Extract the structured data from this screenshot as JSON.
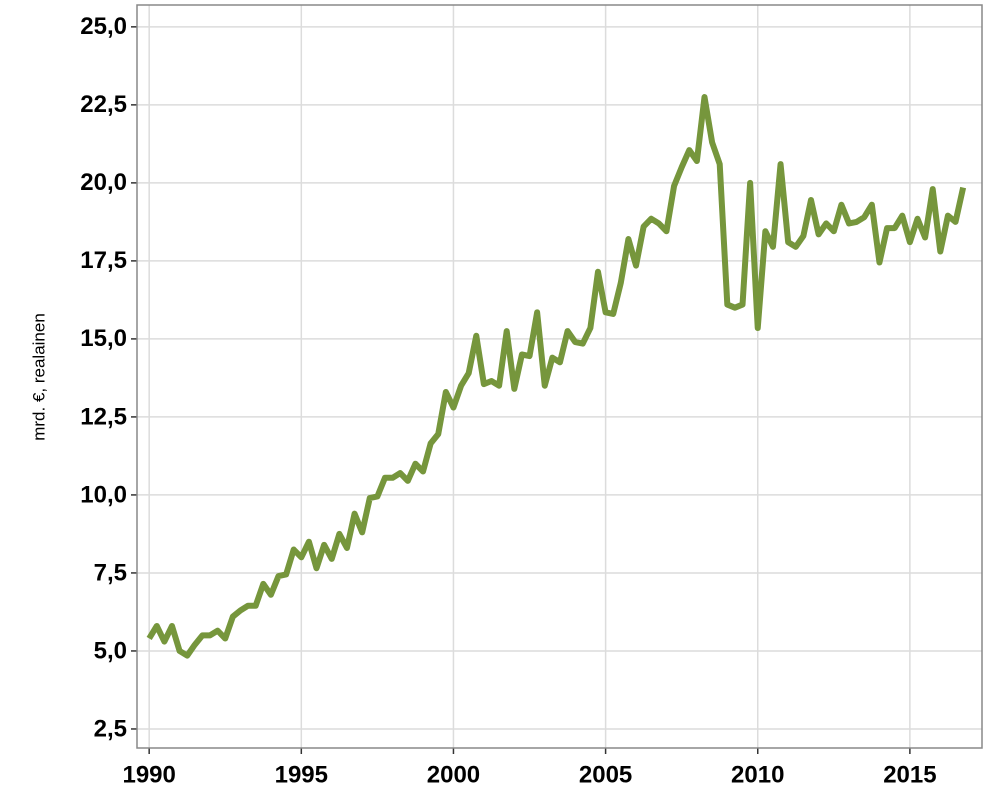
{
  "chart_data": {
    "type": "line",
    "y_label": "mrd. €, realainen",
    "x": [
      1990,
      1990.25,
      1990.5,
      1990.75,
      1991,
      1991.25,
      1991.5,
      1991.75,
      1992,
      1992.25,
      1992.5,
      1992.75,
      1993,
      1993.25,
      1993.5,
      1993.75,
      1994,
      1994.25,
      1994.5,
      1994.75,
      1995,
      1995.25,
      1995.5,
      1995.75,
      1996,
      1996.25,
      1996.5,
      1996.75,
      1997,
      1997.25,
      1997.5,
      1997.75,
      1998,
      1998.25,
      1998.5,
      1998.75,
      1999,
      1999.25,
      1999.5,
      1999.75,
      2000,
      2000.25,
      2000.5,
      2000.75,
      2001,
      2001.25,
      2001.5,
      2001.75,
      2002,
      2002.25,
      2002.5,
      2002.75,
      2003,
      2003.25,
      2003.5,
      2003.75,
      2004,
      2004.25,
      2004.5,
      2004.75,
      2005,
      2005.25,
      2005.5,
      2005.75,
      2006,
      2006.25,
      2006.5,
      2006.75,
      2007,
      2007.25,
      2007.5,
      2007.75,
      2008,
      2008.25,
      2008.5,
      2008.75,
      2009,
      2009.25,
      2009.5,
      2009.75,
      2010,
      2010.25,
      2010.5,
      2010.75,
      2011,
      2011.25,
      2011.5,
      2011.75,
      2012,
      2012.25,
      2012.5,
      2012.75,
      2013,
      2013.25,
      2013.5,
      2013.75,
      2014,
      2014.25,
      2014.5,
      2014.75,
      2015,
      2015.25,
      2015.5,
      2015.75,
      2016,
      2016.25,
      2016.5,
      2016.75
    ],
    "series": [
      {
        "color": "#76963c",
        "values": [
          5.4,
          5.8,
          5.3,
          5.8,
          5.0,
          4.85,
          5.2,
          5.5,
          5.5,
          5.65,
          5.4,
          6.1,
          6.3,
          6.45,
          6.45,
          7.15,
          6.8,
          7.4,
          7.45,
          8.25,
          8.0,
          8.5,
          7.65,
          8.4,
          7.95,
          8.75,
          8.3,
          9.4,
          8.8,
          9.9,
          9.95,
          10.55,
          10.55,
          10.7,
          10.45,
          11.0,
          10.75,
          11.65,
          11.95,
          13.3,
          12.8,
          13.5,
          13.9,
          15.1,
          13.55,
          13.65,
          13.5,
          15.25,
          13.4,
          14.5,
          14.45,
          15.85,
          13.5,
          14.4,
          14.25,
          15.25,
          14.9,
          14.85,
          15.35,
          17.15,
          15.85,
          15.8,
          16.8,
          18.2,
          17.35,
          18.6,
          18.85,
          18.7,
          18.45,
          19.9,
          20.5,
          21.05,
          20.7,
          22.75,
          21.3,
          20.6,
          16.1,
          16.0,
          16.1,
          20.0,
          15.35,
          18.45,
          17.95,
          20.6,
          18.1,
          17.95,
          18.3,
          19.45,
          18.35,
          18.7,
          18.45,
          19.3,
          18.7,
          18.75,
          18.9,
          19.3,
          17.45,
          18.55,
          18.55,
          18.95,
          18.1,
          18.85,
          18.25,
          19.8,
          17.8,
          18.95,
          18.75,
          19.85
        ]
      }
    ],
    "xlim": [
      1989.6,
      2017.37
    ],
    "ylim": [
      1.89,
      25.7
    ],
    "xticks": [
      1990,
      1995,
      2000,
      2005,
      2010,
      2015
    ],
    "yticks": [
      {
        "value": 2.5,
        "label": "2,5"
      },
      {
        "value": 5,
        "label": "5,0"
      },
      {
        "value": 7.5,
        "label": "7,5"
      },
      {
        "value": 10,
        "label": "10,0"
      },
      {
        "value": 12.5,
        "label": "12,5"
      },
      {
        "value": 15,
        "label": "15,0"
      },
      {
        "value": 17.5,
        "label": "17,5"
      },
      {
        "value": 20,
        "label": "20,0"
      },
      {
        "value": 22.5,
        "label": "22,5"
      },
      {
        "value": 25,
        "label": "25,0"
      }
    ],
    "grid": true
  }
}
